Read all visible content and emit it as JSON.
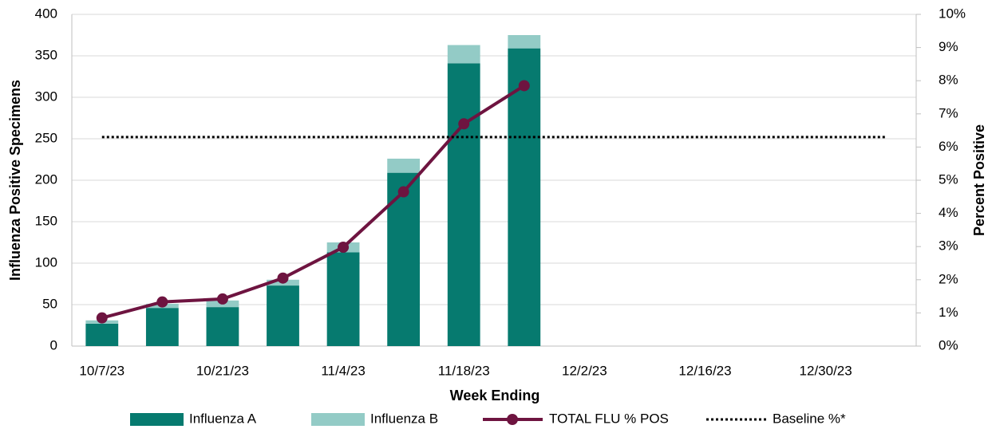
{
  "chart_data": {
    "type": "bar",
    "stacked": true,
    "xlabel": "Week Ending",
    "ylabel": "Influenza Positive Specimens",
    "y2label": "Percent Positive",
    "categories": [
      "10/7/23",
      null,
      "10/21/23",
      null,
      "11/4/23",
      null,
      "11/18/23",
      null,
      "12/2/23",
      null,
      "12/16/23",
      null,
      "12/30/23",
      null
    ],
    "series": [
      {
        "name": "Influenza A",
        "type": "bar",
        "color": "#067a6f",
        "values": [
          27,
          46,
          47,
          73,
          113,
          209,
          341,
          359,
          null,
          null,
          null,
          null,
          null,
          null
        ]
      },
      {
        "name": "Influenza B",
        "type": "bar",
        "color": "#93cbc6",
        "values": [
          4,
          5,
          8,
          7,
          12,
          17,
          22,
          16,
          null,
          null,
          null,
          null,
          null,
          null
        ]
      },
      {
        "name": "TOTAL FLU % POS",
        "type": "line",
        "axis": "y2",
        "color": "#6e1440",
        "marker": true,
        "values": [
          0.85,
          1.33,
          1.42,
          2.05,
          2.98,
          4.65,
          6.7,
          7.85,
          null,
          null,
          null,
          null,
          null,
          null
        ]
      },
      {
        "name": "Baseline %*",
        "type": "line",
        "axis": "y2",
        "color": "#000000",
        "dotted": true,
        "values": [
          6.3,
          6.3,
          6.3,
          6.3,
          6.3,
          6.3,
          6.3,
          6.3,
          6.3,
          6.3,
          6.3,
          6.3,
          6.3,
          6.3
        ]
      }
    ],
    "ylim": [
      0,
      400
    ],
    "yticks": [
      0,
      50,
      100,
      150,
      200,
      250,
      300,
      350,
      400
    ],
    "y2lim": [
      0,
      10
    ],
    "y2ticks": [
      {
        "value": 0,
        "label": "0%"
      },
      {
        "value": 1,
        "label": "1%"
      },
      {
        "value": 2,
        "label": "2%"
      },
      {
        "value": 3,
        "label": "3%"
      },
      {
        "value": 4,
        "label": "4%"
      },
      {
        "value": 5,
        "label": "5%"
      },
      {
        "value": 6,
        "label": "6%"
      },
      {
        "value": 7,
        "label": "7%"
      },
      {
        "value": 8,
        "label": "8%"
      },
      {
        "value": 9,
        "label": "9%"
      },
      {
        "value": 10,
        "label": "10%"
      }
    ],
    "grid": true,
    "legend": "bottom"
  }
}
